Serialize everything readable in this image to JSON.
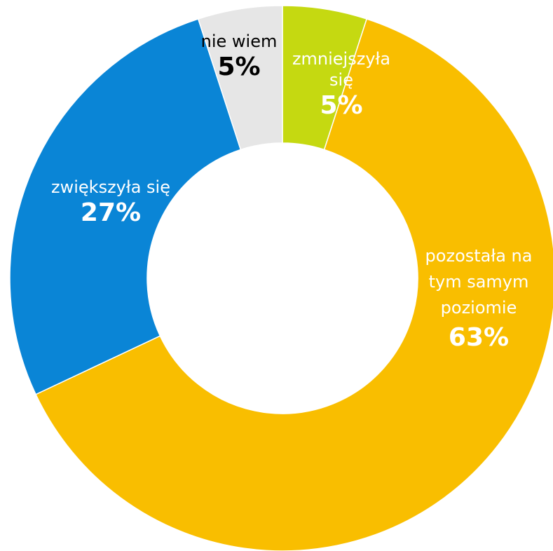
{
  "chart_data": {
    "type": "pie",
    "style": "donut",
    "start_angle_deg": 0,
    "direction": "clockwise",
    "slices": [
      {
        "key": "decreased",
        "label": "zmniejszyła się",
        "label_lines": [
          "zmniejszyła",
          "się"
        ],
        "value": 5,
        "value_label": "5%",
        "color": "#C5D911",
        "text_color": "#ffffff"
      },
      {
        "key": "same",
        "label": "pozostała na tym samym poziomie",
        "label_lines": [
          "pozostała na",
          "tym samym",
          "poziomie"
        ],
        "value": 63,
        "value_label": "63%",
        "color": "#F9BE00",
        "text_color": "#ffffff"
      },
      {
        "key": "increased",
        "label": "zwiększyła się",
        "label_lines": [
          "zwiększyła się"
        ],
        "value": 27,
        "value_label": "27%",
        "color": "#0A85D6",
        "text_color": "#ffffff"
      },
      {
        "key": "dontknow",
        "label": "nie wiem",
        "label_lines": [
          "nie wiem"
        ],
        "value": 5,
        "value_label": "5%",
        "color": "#E6E6E6",
        "text_color": "#000000"
      }
    ]
  }
}
